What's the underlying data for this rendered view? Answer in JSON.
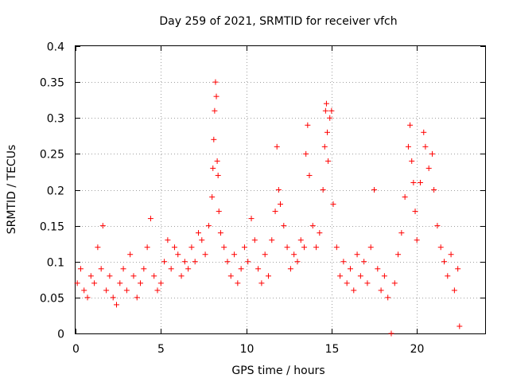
{
  "chart_data": {
    "type": "scatter",
    "title": "Day 259 of 2021, SRMTID for receiver vfch",
    "xlabel": "GPS time / hours",
    "ylabel": "SRMTID / TECUs",
    "xlim": [
      0,
      24
    ],
    "ylim": [
      0,
      0.4
    ],
    "xticks": [
      0,
      5,
      10,
      15,
      20
    ],
    "xtick_labels": [
      "0",
      "5",
      "10",
      "15",
      "20"
    ],
    "yticks": [
      0,
      0.05,
      0.1,
      0.15,
      0.2,
      0.25,
      0.3,
      0.35,
      0.4
    ],
    "ytick_labels": [
      "0",
      "0.05",
      "0.1",
      "0.15",
      "0.2",
      "0.25",
      "0.3",
      "0.35",
      "0.4"
    ],
    "grid": true,
    "series": [
      {
        "name": "SRMTID",
        "color": "#ff0000",
        "marker": "plus",
        "points": [
          [
            0.1,
            0.07
          ],
          [
            0.3,
            0.09
          ],
          [
            0.5,
            0.06
          ],
          [
            0.7,
            0.05
          ],
          [
            0.9,
            0.08
          ],
          [
            1.1,
            0.07
          ],
          [
            1.3,
            0.12
          ],
          [
            1.5,
            0.09
          ],
          [
            1.6,
            0.15
          ],
          [
            1.8,
            0.06
          ],
          [
            2.0,
            0.08
          ],
          [
            2.2,
            0.05
          ],
          [
            2.4,
            0.04
          ],
          [
            2.6,
            0.07
          ],
          [
            2.8,
            0.09
          ],
          [
            3.0,
            0.06
          ],
          [
            3.2,
            0.11
          ],
          [
            3.4,
            0.08
          ],
          [
            3.6,
            0.05
          ],
          [
            3.8,
            0.07
          ],
          [
            4.0,
            0.09
          ],
          [
            4.2,
            0.12
          ],
          [
            4.4,
            0.16
          ],
          [
            4.6,
            0.08
          ],
          [
            4.8,
            0.06
          ],
          [
            5.0,
            0.07
          ],
          [
            5.2,
            0.1
          ],
          [
            5.4,
            0.13
          ],
          [
            5.6,
            0.09
          ],
          [
            5.8,
            0.12
          ],
          [
            6.0,
            0.11
          ],
          [
            6.2,
            0.08
          ],
          [
            6.4,
            0.1
          ],
          [
            6.6,
            0.09
          ],
          [
            6.8,
            0.12
          ],
          [
            7.0,
            0.1
          ],
          [
            7.2,
            0.14
          ],
          [
            7.4,
            0.13
          ],
          [
            7.6,
            0.11
          ],
          [
            7.8,
            0.15
          ],
          [
            8.0,
            0.19
          ],
          [
            8.05,
            0.23
          ],
          [
            8.1,
            0.27
          ],
          [
            8.15,
            0.31
          ],
          [
            8.2,
            0.35
          ],
          [
            8.25,
            0.33
          ],
          [
            8.3,
            0.24
          ],
          [
            8.35,
            0.22
          ],
          [
            8.4,
            0.17
          ],
          [
            8.5,
            0.14
          ],
          [
            8.7,
            0.12
          ],
          [
            8.9,
            0.1
          ],
          [
            9.1,
            0.08
          ],
          [
            9.3,
            0.11
          ],
          [
            9.5,
            0.07
          ],
          [
            9.7,
            0.09
          ],
          [
            9.9,
            0.12
          ],
          [
            10.1,
            0.1
          ],
          [
            10.3,
            0.16
          ],
          [
            10.5,
            0.13
          ],
          [
            10.7,
            0.09
          ],
          [
            10.9,
            0.07
          ],
          [
            11.1,
            0.11
          ],
          [
            11.3,
            0.08
          ],
          [
            11.5,
            0.13
          ],
          [
            11.7,
            0.17
          ],
          [
            11.8,
            0.26
          ],
          [
            11.9,
            0.2
          ],
          [
            12.0,
            0.18
          ],
          [
            12.2,
            0.15
          ],
          [
            12.4,
            0.12
          ],
          [
            12.6,
            0.09
          ],
          [
            12.8,
            0.11
          ],
          [
            13.0,
            0.1
          ],
          [
            13.2,
            0.13
          ],
          [
            13.4,
            0.12
          ],
          [
            13.5,
            0.25
          ],
          [
            13.6,
            0.29
          ],
          [
            13.7,
            0.22
          ],
          [
            13.9,
            0.15
          ],
          [
            14.1,
            0.12
          ],
          [
            14.3,
            0.14
          ],
          [
            14.5,
            0.2
          ],
          [
            14.6,
            0.26
          ],
          [
            14.65,
            0.31
          ],
          [
            14.7,
            0.32
          ],
          [
            14.75,
            0.28
          ],
          [
            14.8,
            0.24
          ],
          [
            14.9,
            0.3
          ],
          [
            15.0,
            0.31
          ],
          [
            15.1,
            0.18
          ],
          [
            15.3,
            0.12
          ],
          [
            15.5,
            0.08
          ],
          [
            15.7,
            0.1
          ],
          [
            15.9,
            0.07
          ],
          [
            16.1,
            0.09
          ],
          [
            16.3,
            0.06
          ],
          [
            16.5,
            0.11
          ],
          [
            16.7,
            0.08
          ],
          [
            16.9,
            0.1
          ],
          [
            17.1,
            0.07
          ],
          [
            17.3,
            0.12
          ],
          [
            17.5,
            0.2
          ],
          [
            17.7,
            0.09
          ],
          [
            17.9,
            0.06
          ],
          [
            18.1,
            0.08
          ],
          [
            18.3,
            0.05
          ],
          [
            18.5,
            0.0
          ],
          [
            18.7,
            0.07
          ],
          [
            18.9,
            0.11
          ],
          [
            19.1,
            0.14
          ],
          [
            19.3,
            0.19
          ],
          [
            19.5,
            0.26
          ],
          [
            19.6,
            0.29
          ],
          [
            19.7,
            0.24
          ],
          [
            19.8,
            0.21
          ],
          [
            19.9,
            0.17
          ],
          [
            20.0,
            0.13
          ],
          [
            20.2,
            0.21
          ],
          [
            20.4,
            0.28
          ],
          [
            20.5,
            0.26
          ],
          [
            20.7,
            0.23
          ],
          [
            20.9,
            0.25
          ],
          [
            21.0,
            0.2
          ],
          [
            21.2,
            0.15
          ],
          [
            21.4,
            0.12
          ],
          [
            21.6,
            0.1
          ],
          [
            21.8,
            0.08
          ],
          [
            22.0,
            0.11
          ],
          [
            22.2,
            0.06
          ],
          [
            22.4,
            0.09
          ],
          [
            22.5,
            0.01
          ]
        ]
      }
    ]
  }
}
